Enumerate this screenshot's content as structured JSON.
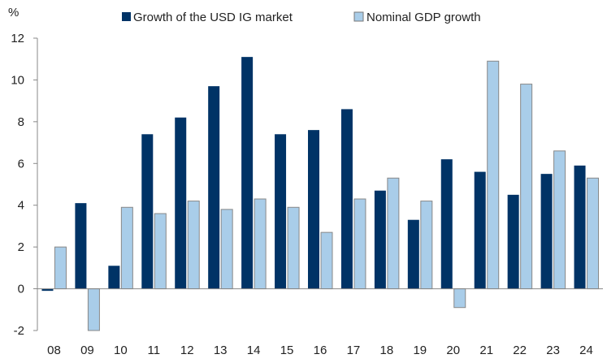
{
  "chart_data": {
    "type": "bar",
    "ylabel": "%",
    "ylim": [
      -2,
      12
    ],
    "yticks": [
      -2,
      0,
      2,
      4,
      6,
      8,
      10,
      12
    ],
    "categories": [
      "08",
      "09",
      "10",
      "11",
      "12",
      "13",
      "14",
      "15",
      "16",
      "17",
      "18",
      "19",
      "20",
      "21",
      "22",
      "23",
      "24"
    ],
    "legend_position": "top",
    "grid": false,
    "series": [
      {
        "name": "Growth of the USD IG market",
        "color": "#003366",
        "values": [
          -0.1,
          4.1,
          1.1,
          7.4,
          8.2,
          9.7,
          11.1,
          7.4,
          7.6,
          8.6,
          4.7,
          3.3,
          6.2,
          5.6,
          4.5,
          5.5,
          5.9
        ]
      },
      {
        "name": "Nominal GDP growth",
        "color": "#a9cde9",
        "values": [
          2.0,
          -2.0,
          3.9,
          3.6,
          4.2,
          3.8,
          4.3,
          3.9,
          2.7,
          4.3,
          5.3,
          4.2,
          -0.9,
          10.9,
          9.8,
          6.6,
          5.3
        ]
      }
    ]
  }
}
